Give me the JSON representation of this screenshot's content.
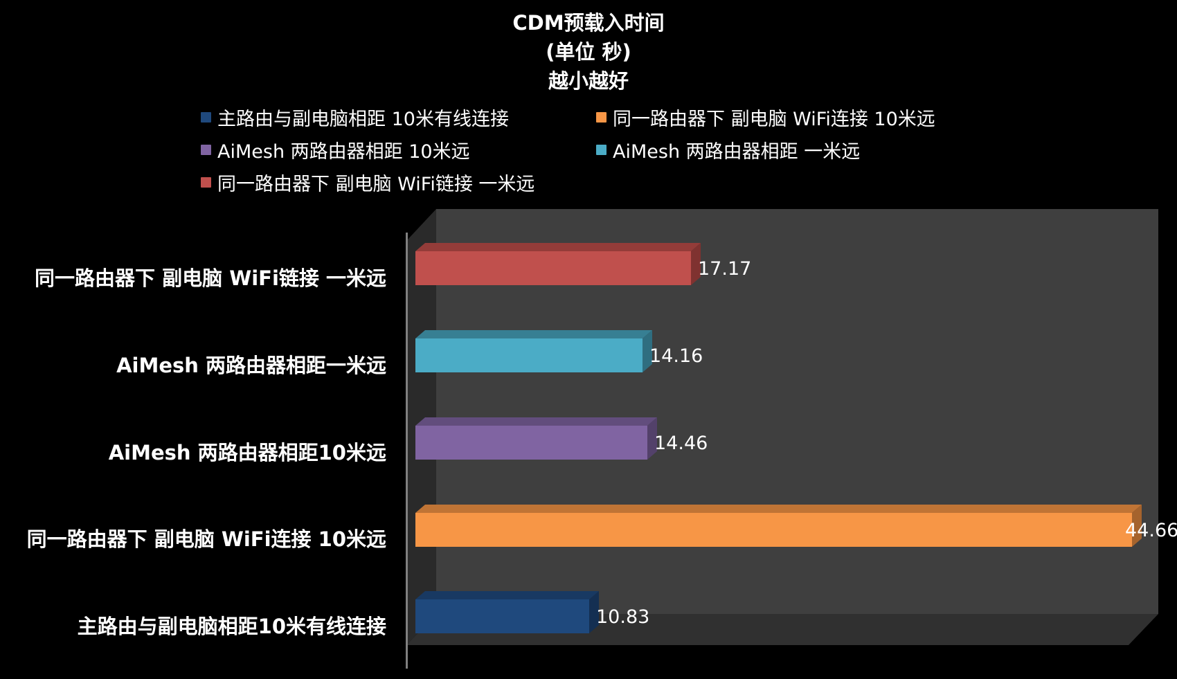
{
  "chart_data": {
    "type": "bar",
    "orientation": "horizontal",
    "style": "3d-clustered",
    "title": "CDM预载入时间",
    "subtitle_lines": [
      "(单位 秒)",
      "越小越好"
    ],
    "categories": [
      "同一路由器下 副电脑 WiFi链接 一米远",
      "AiMesh 两路由器相距一米远",
      "AiMesh 两路由器相距10米远",
      "同一路由器下 副电脑 WiFi连接 10米远",
      "主路由与副电脑相距10米有线连接"
    ],
    "series": [
      {
        "name": "同一路由器下  副电脑 WiFi链接 一米远",
        "values": [
          17.17
        ],
        "color": "#c0504d"
      },
      {
        "name": "AiMesh 两路由器相距 一米远",
        "values": [
          14.16
        ],
        "color": "#4bacc6"
      },
      {
        "name": "AiMesh 两路由器相距 10米远",
        "values": [
          14.46
        ],
        "color": "#8064a2"
      },
      {
        "name": "同一路由器下  副电脑 WiFi连接 10米远",
        "values": [
          44.66
        ],
        "color": "#f79646"
      },
      {
        "name": "主路由与副电脑相距 10米有线连接",
        "values": [
          10.83
        ],
        "color": "#1f497d"
      }
    ],
    "values": [
      17.17,
      14.16,
      14.46,
      44.66,
      10.83
    ],
    "xlabel": "",
    "ylabel": "",
    "xlim": [
      0,
      46
    ],
    "grid": false,
    "legend_position": "top",
    "data_labels": true
  },
  "title": {
    "line1": "CDM预载入时间",
    "line2": "(单位 秒)",
    "line3": "越小越好"
  },
  "legend": [
    {
      "label": "主路由与副电脑相距 10米有线连接",
      "color": "#1f497d"
    },
    {
      "label": "同一路由器下  副电脑 WiFi连接 10米远",
      "color": "#f79646"
    },
    {
      "label": "AiMesh 两路由器相距 10米远",
      "color": "#8064a2"
    },
    {
      "label": "AiMesh 两路由器相距 一米远",
      "color": "#4bacc6"
    },
    {
      "label": "同一路由器下  副电脑 WiFi链接 一米远",
      "color": "#c0504d"
    }
  ],
  "bars": [
    {
      "label": "同一路由器下 副电脑 WiFi链接 一米远",
      "value": "17.17",
      "num": 17.17,
      "front": "#c0504d",
      "top": "#943c39",
      "side": "#7f3230"
    },
    {
      "label": "AiMesh 两路由器相距一米远",
      "value": "14.16",
      "num": 14.16,
      "front": "#4bacc6",
      "top": "#377f93",
      "side": "#2f6e80"
    },
    {
      "label": "AiMesh 两路由器相距10米远",
      "value": "14.46",
      "num": 14.46,
      "front": "#8064a2",
      "top": "#624d7d",
      "side": "#53416a"
    },
    {
      "label": "同一路由器下 副电脑 WiFi连接 10米远",
      "value": "44.66",
      "num": 44.66,
      "front": "#f79646",
      "top": "#c07435",
      "side": "#a5632d"
    },
    {
      "label": "主路由与副电脑相距10米有线连接",
      "value": "10.83",
      "num": 10.83,
      "front": "#1f497d",
      "top": "#183962",
      "side": "#142f52"
    }
  ]
}
